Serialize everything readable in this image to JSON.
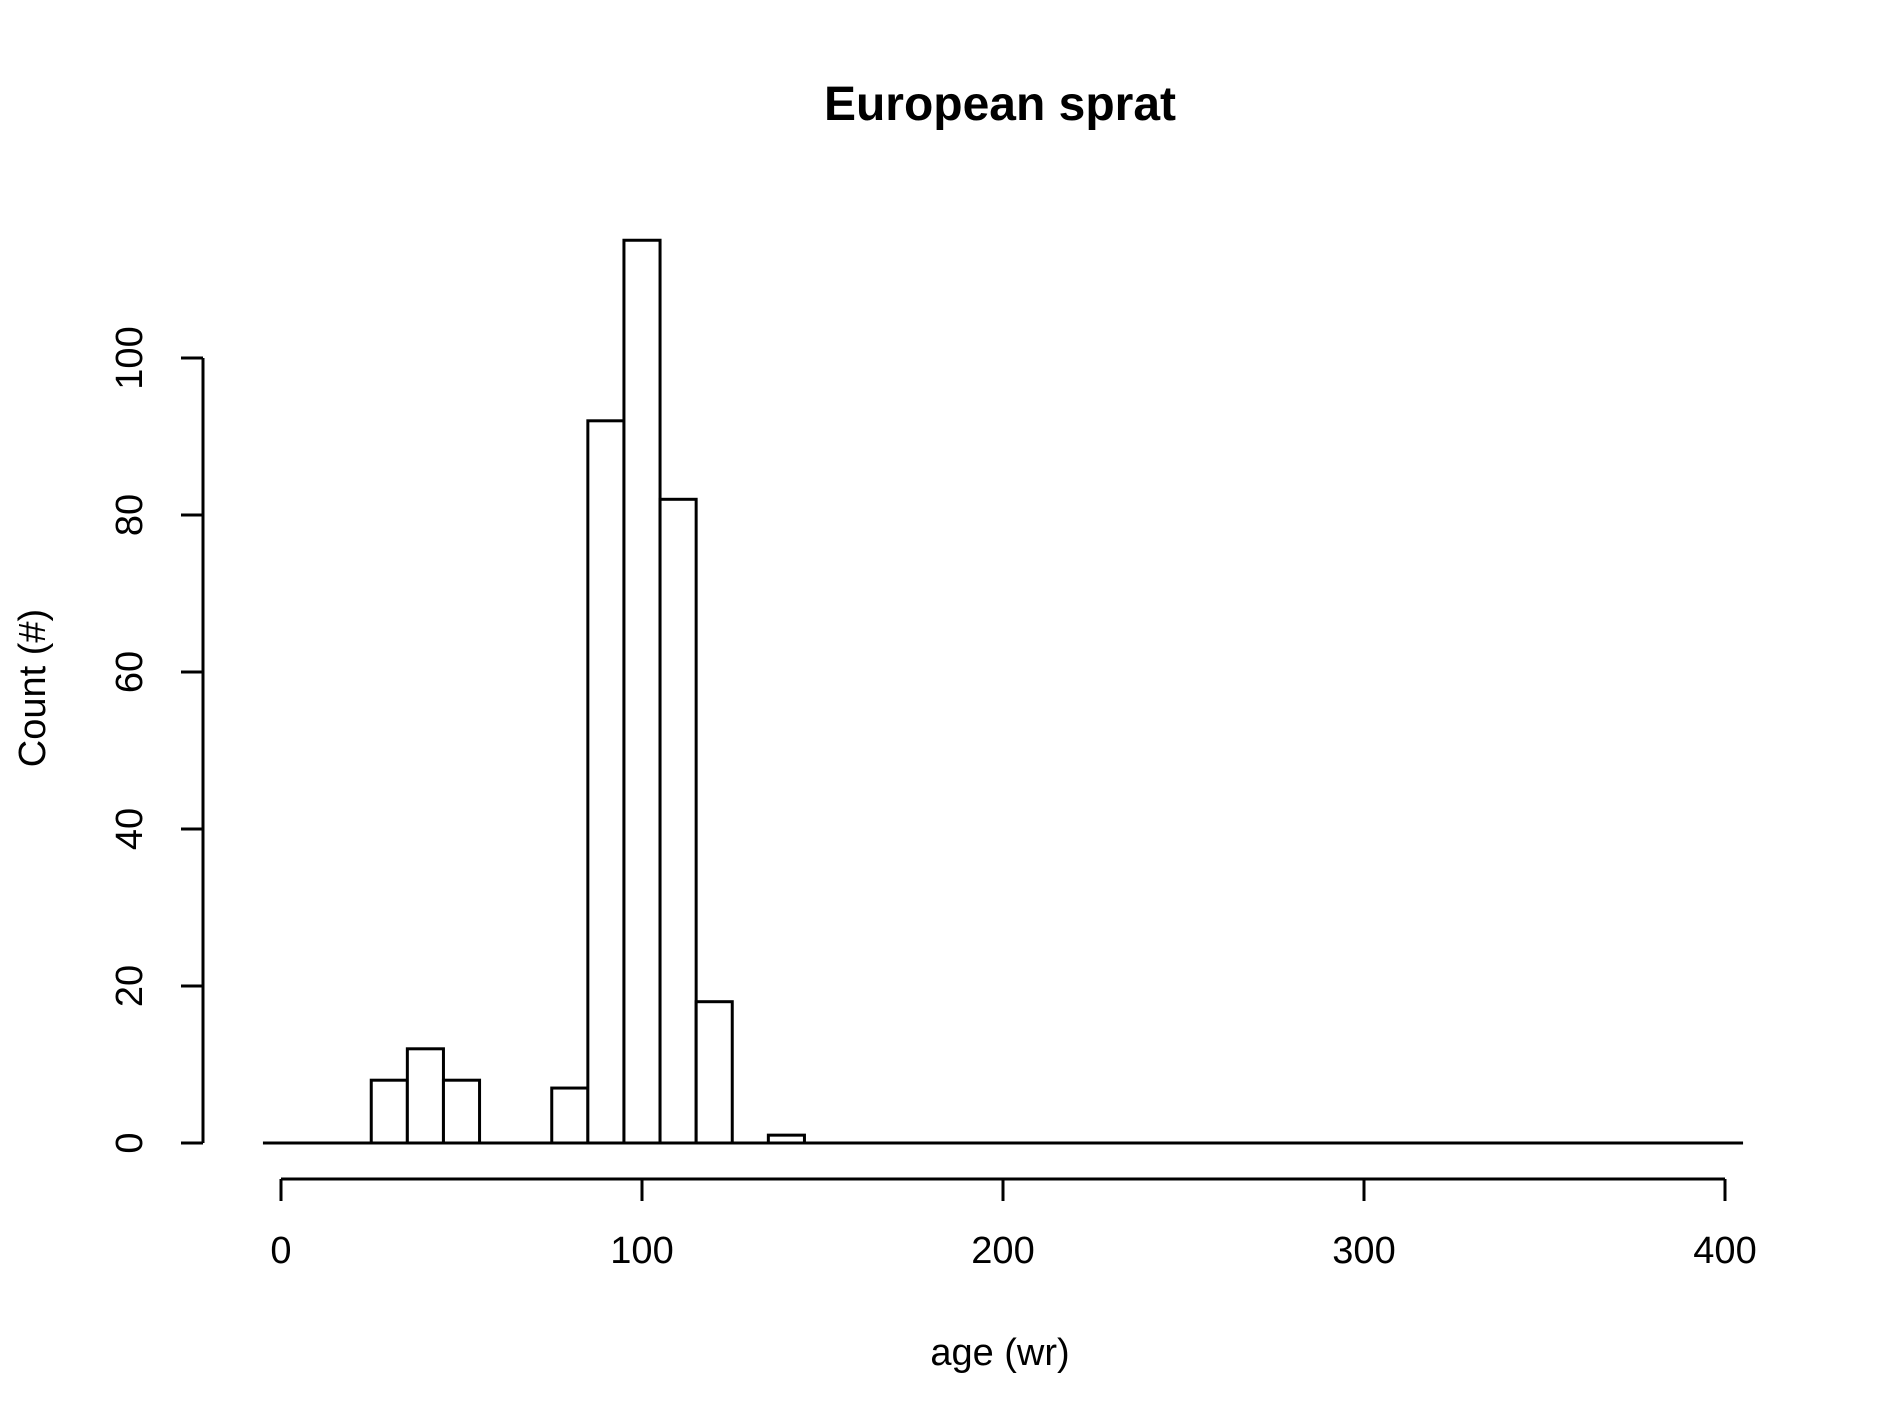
{
  "chart_data": {
    "type": "bar",
    "title": "European sprat",
    "xlabel": "age (wr)",
    "ylabel": "Count (#)",
    "bin_width": 10,
    "bins": [
      {
        "x0": 25,
        "x1": 35,
        "count": 8
      },
      {
        "x0": 35,
        "x1": 45,
        "count": 12
      },
      {
        "x0": 45,
        "x1": 55,
        "count": 8
      },
      {
        "x0": 55,
        "x1": 65,
        "count": 0
      },
      {
        "x0": 65,
        "x1": 75,
        "count": 0
      },
      {
        "x0": 75,
        "x1": 85,
        "count": 7
      },
      {
        "x0": 85,
        "x1": 95,
        "count": 92
      },
      {
        "x0": 95,
        "x1": 105,
        "count": 115
      },
      {
        "x0": 105,
        "x1": 115,
        "count": 82
      },
      {
        "x0": 115,
        "x1": 125,
        "count": 18
      },
      {
        "x0": 125,
        "x1": 135,
        "count": 0
      },
      {
        "x0": 135,
        "x1": 145,
        "count": 1
      }
    ],
    "baseline_range": [
      -5,
      405
    ],
    "x_ticks": [
      "0",
      "100",
      "200",
      "300",
      "400"
    ],
    "y_ticks": [
      "0",
      "20",
      "40",
      "60",
      "80",
      "100"
    ],
    "xlim": [
      0,
      400
    ],
    "ylim": [
      0,
      115
    ],
    "grid": false,
    "legend": "none",
    "colors": {
      "bar_fill": "#ffffff",
      "bar_stroke": "#000000"
    }
  }
}
